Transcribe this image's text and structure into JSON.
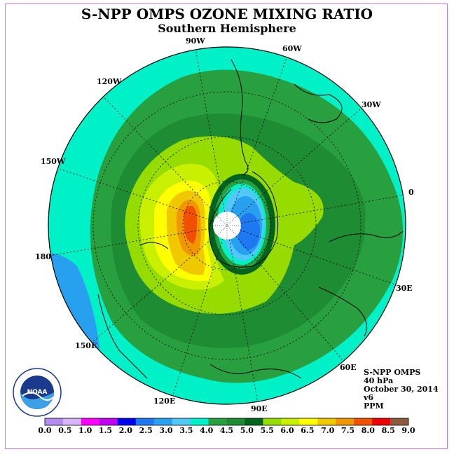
{
  "title": "S-NPP OMPS OZONE MIXING RATIO",
  "subtitle": "Southern Hemisphere",
  "longitude_labels": [
    {
      "text": "90W"
    },
    {
      "text": "60W"
    },
    {
      "text": "120W"
    },
    {
      "text": "30W"
    },
    {
      "text": "150W"
    },
    {
      "text": "0"
    },
    {
      "text": "180"
    },
    {
      "text": "30E"
    },
    {
      "text": "150E"
    },
    {
      "text": "60E"
    },
    {
      "text": "120E"
    },
    {
      "text": "90E"
    }
  ],
  "info": {
    "instrument": "S-NPP OMPS",
    "level": "40 hPa",
    "date": "October 30, 2014",
    "version": "v6",
    "units": "PPM"
  },
  "logo_text": "NOAA",
  "colorbar": {
    "ticks": [
      "0.0",
      "0.5",
      "1.0",
      "1.5",
      "2.0",
      "2.5",
      "3.0",
      "3.5",
      "4.0",
      "4.5",
      "5.0",
      "5.5",
      "6.0",
      "6.5",
      "7.0",
      "7.5",
      "8.0",
      "8.5",
      "9.0"
    ],
    "colors": [
      "#b48cf0",
      "#d8b4f8",
      "#ff00ff",
      "#c000f0",
      "#0000f0",
      "#1e78f0",
      "#28a0f0",
      "#50c8f8",
      "#00f0c8",
      "#28a040",
      "#1e8c32",
      "#00641e",
      "#96dc00",
      "#c8f000",
      "#ffff00",
      "#f0c800",
      "#f09600",
      "#f05000",
      "#f00000",
      "#8c5a3c"
    ]
  }
}
